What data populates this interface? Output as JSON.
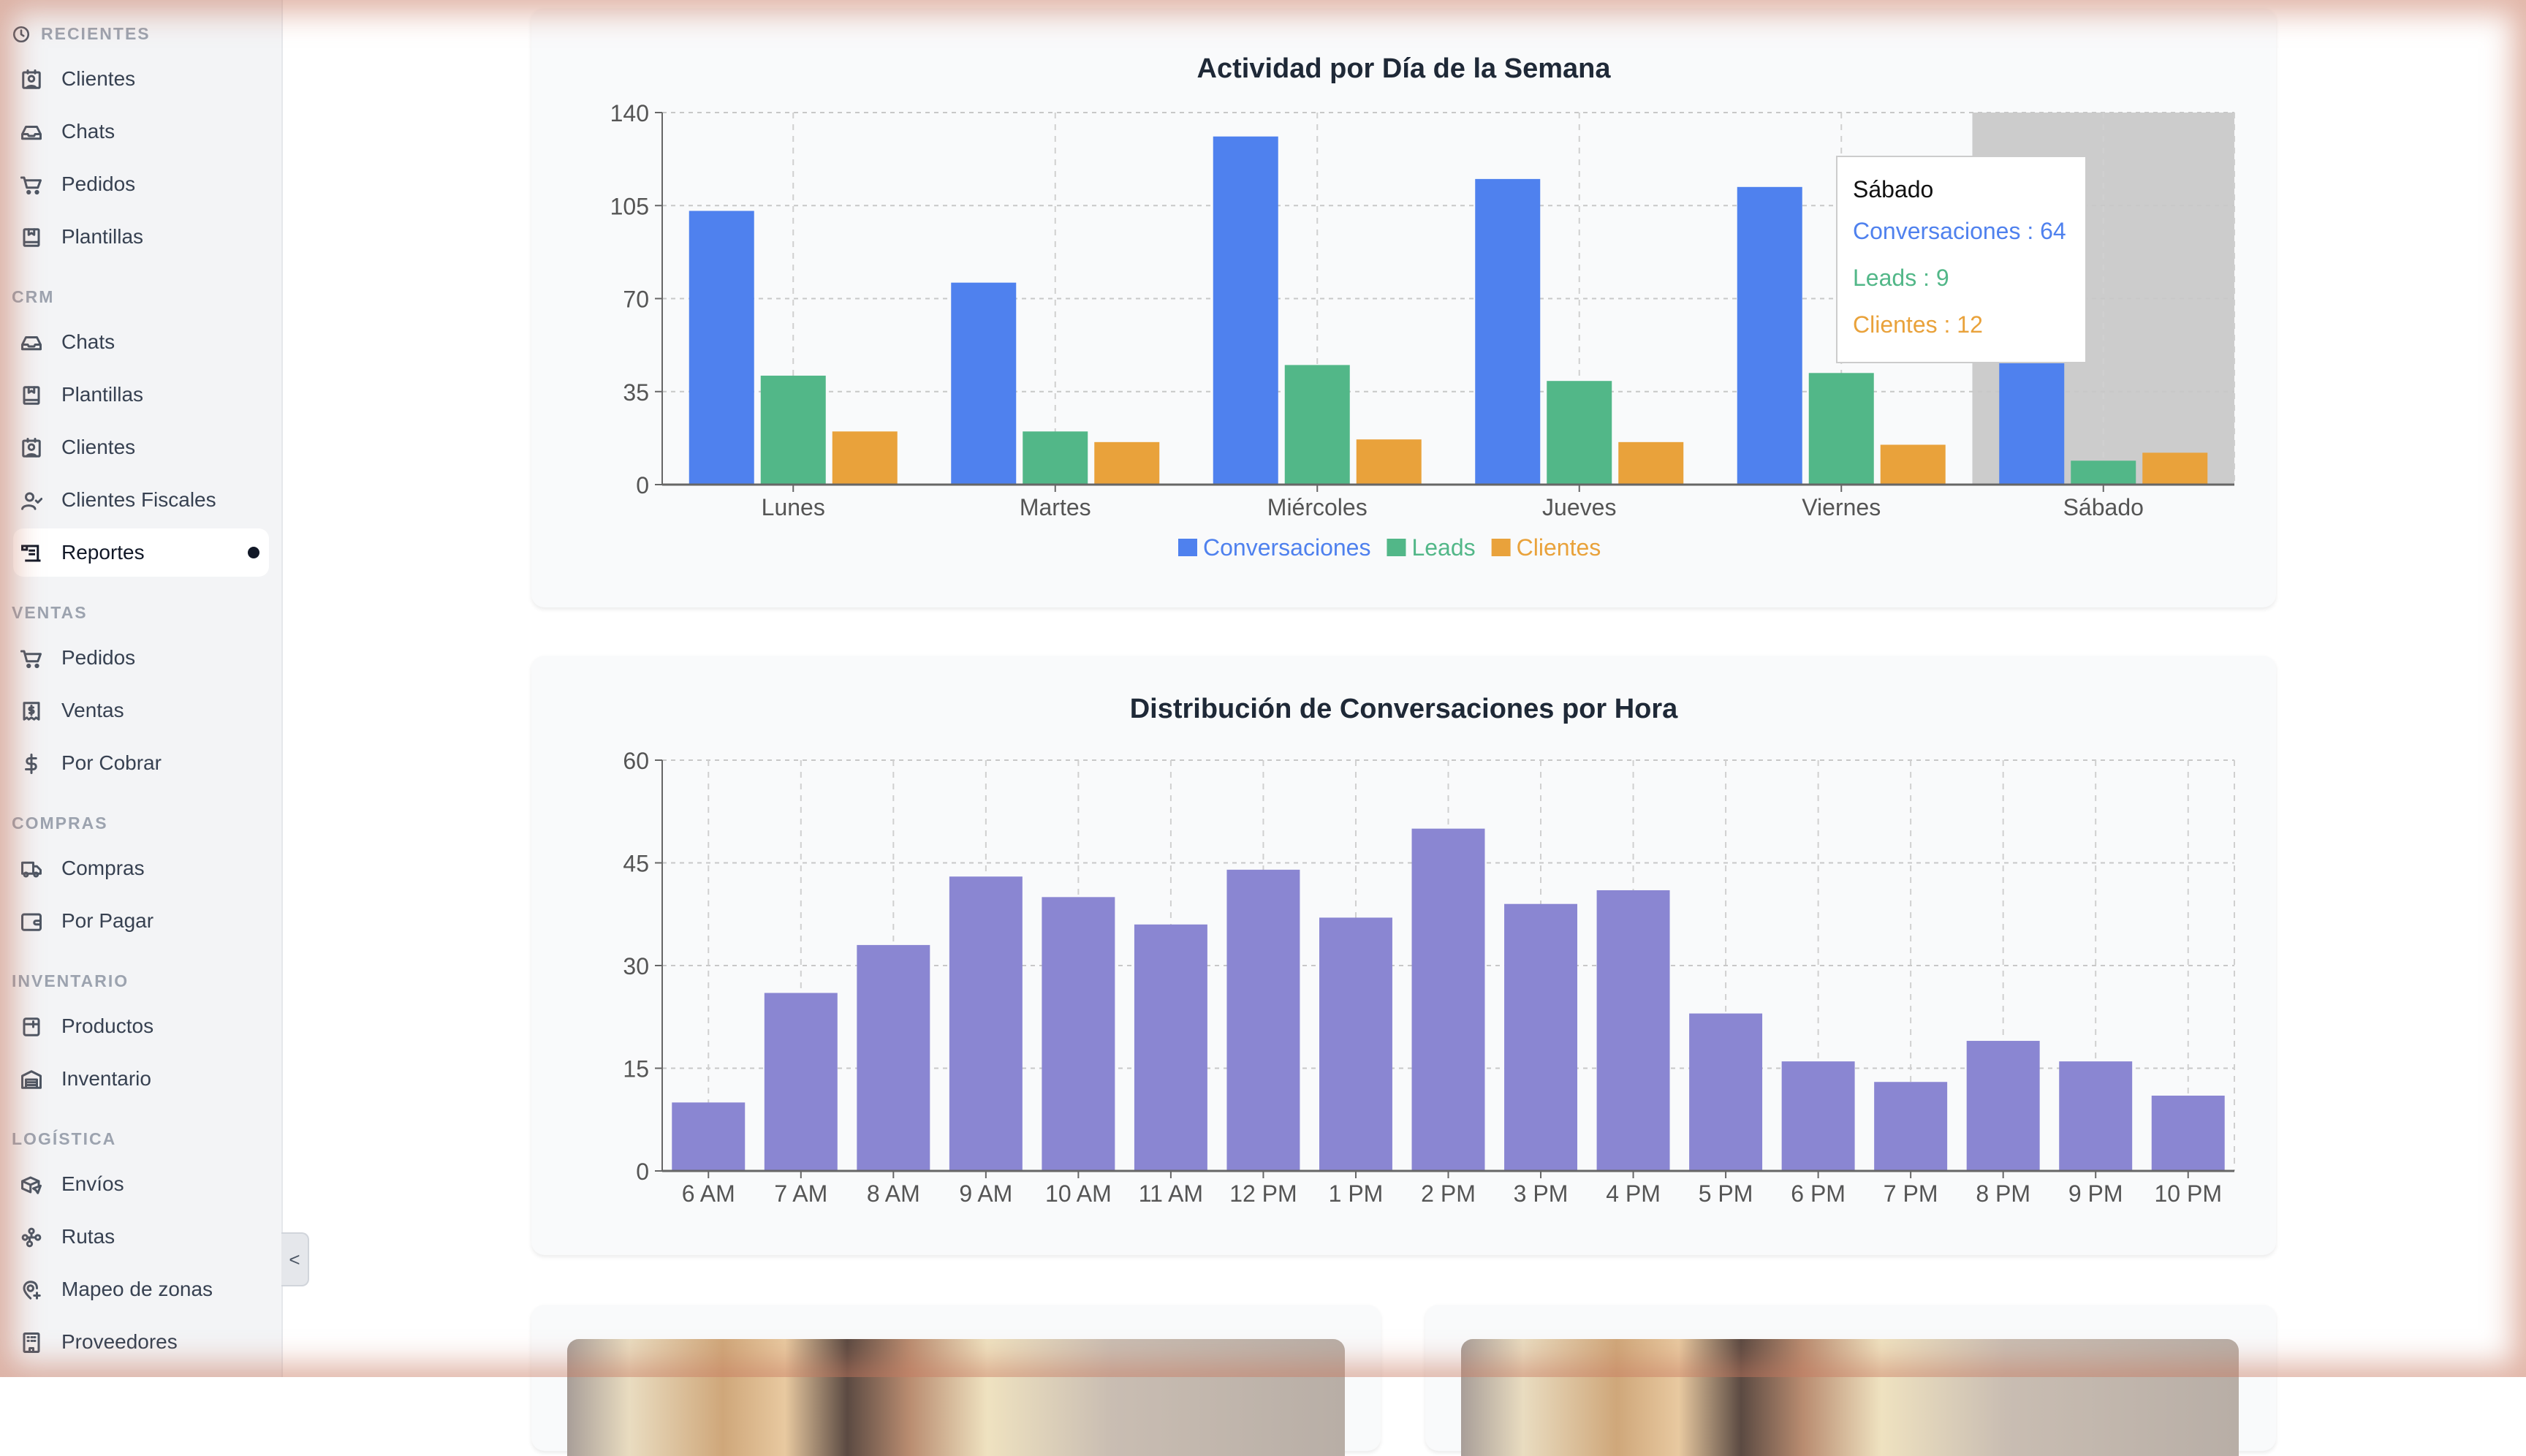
{
  "sidebar": {
    "sections": [
      {
        "title": "RECIENTES",
        "icon": "clock-icon",
        "items": [
          {
            "label": "Clientes",
            "icon": "contact-card-icon"
          },
          {
            "label": "Chats",
            "icon": "inbox-icon"
          },
          {
            "label": "Pedidos",
            "icon": "cart-icon"
          },
          {
            "label": "Plantillas",
            "icon": "template-book-icon"
          }
        ]
      },
      {
        "title": "CRM",
        "items": [
          {
            "label": "Chats",
            "icon": "inbox-icon"
          },
          {
            "label": "Plantillas",
            "icon": "template-book-icon"
          },
          {
            "label": "Clientes",
            "icon": "contact-card-icon"
          },
          {
            "label": "Clientes Fiscales",
            "icon": "user-check-icon"
          },
          {
            "label": "Reportes",
            "icon": "scroll-report-icon",
            "active": true
          }
        ]
      },
      {
        "title": "VENTAS",
        "items": [
          {
            "label": "Pedidos",
            "icon": "cart-icon"
          },
          {
            "label": "Ventas",
            "icon": "receipt-dollar-icon"
          },
          {
            "label": "Por Cobrar",
            "icon": "dollar-icon"
          }
        ]
      },
      {
        "title": "COMPRAS",
        "items": [
          {
            "label": "Compras",
            "icon": "truck-icon"
          },
          {
            "label": "Por Pagar",
            "icon": "wallet-icon"
          }
        ]
      },
      {
        "title": "INVENTARIO",
        "items": [
          {
            "label": "Productos",
            "icon": "product-box-icon"
          },
          {
            "label": "Inventario",
            "icon": "warehouse-icon"
          }
        ]
      },
      {
        "title": "LOGÍSTICA",
        "items": [
          {
            "label": "Envíos",
            "icon": "package-send-icon"
          },
          {
            "label": "Rutas",
            "icon": "route-icon"
          },
          {
            "label": "Mapeo de zonas",
            "icon": "map-pin-plus-icon"
          },
          {
            "label": "Proveedores",
            "icon": "building-icon"
          }
        ]
      }
    ],
    "collapse_glyph": "<"
  },
  "colors": {
    "conversaciones": "#4f81ee",
    "leads": "#52b788",
    "clientes": "#e9a23b",
    "hora": "#8a86d2"
  },
  "chart_data": [
    {
      "type": "bar",
      "title": "Actividad por Día de la Semana",
      "categories": [
        "Lunes",
        "Martes",
        "Miércoles",
        "Jueves",
        "Viernes",
        "Sábado"
      ],
      "series": [
        {
          "name": "Conversaciones",
          "values": [
            103,
            76,
            131,
            115,
            112,
            64
          ]
        },
        {
          "name": "Leads",
          "values": [
            41,
            20,
            45,
            39,
            42,
            9
          ]
        },
        {
          "name": "Clientes",
          "values": [
            20,
            16,
            17,
            16,
            15,
            12
          ]
        }
      ],
      "ylim": [
        0,
        140
      ],
      "yticks": [
        "0",
        "35",
        "70",
        "105",
        "140"
      ],
      "grid": true,
      "legend": "bottom-center",
      "tooltip": {
        "category": "Sábado",
        "lines": [
          "Conversaciones : 64",
          "Leads : 9",
          "Clientes : 12"
        ]
      }
    },
    {
      "type": "bar",
      "title": "Distribución de Conversaciones por Hora",
      "categories": [
        "6 AM",
        "7 AM",
        "8 AM",
        "9 AM",
        "10 AM",
        "11 AM",
        "12 PM",
        "1 PM",
        "2 PM",
        "3 PM",
        "4 PM",
        "5 PM",
        "6 PM",
        "7 PM",
        "8 PM",
        "9 PM",
        "10 PM"
      ],
      "series": [
        {
          "name": "Conversaciones",
          "values": [
            10,
            26,
            33,
            43,
            40,
            36,
            44,
            37,
            50,
            39,
            41,
            23,
            16,
            13,
            19,
            16,
            11
          ]
        }
      ],
      "ylim": [
        0,
        60
      ],
      "yticks": [
        "0",
        "15",
        "30",
        "45",
        "60"
      ],
      "grid": true
    }
  ]
}
